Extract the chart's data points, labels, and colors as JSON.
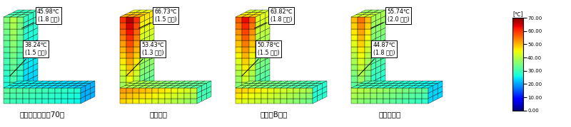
{
  "panels": [
    {
      "label": "【スラグリート70】",
      "top_text": "45.98℃\n(1.8 日目)",
      "bot_text": "38.24℃\n(1.5 日目)",
      "wall_max_temp": 45.98,
      "base_max_temp": 38.24,
      "wall_tmax": 40,
      "wall_tmin": 25,
      "base_tmax": 32,
      "base_tmin": 22
    },
    {
      "label": "【普通】",
      "top_text": "66.73℃\n(1.5 日目)",
      "bot_text": "53.43℃\n(1.3 日目)",
      "wall_max_temp": 66.73,
      "wall_tmax": 68,
      "wall_tmin": 30,
      "base_tmax": 52,
      "base_tmin": 28
    },
    {
      "label": "【高炉B種】",
      "top_text": "63.82℃\n(1.8 日目)",
      "bot_text": "50.78℃\n(1.5 日目)",
      "wall_max_temp": 63.82,
      "wall_tmax": 64,
      "wall_tmin": 28,
      "base_tmax": 48,
      "base_tmin": 26
    },
    {
      "label": "【中庸熱】",
      "top_text": "55.74℃\n(2.0 日目)",
      "bot_text": "44.87℃\n(1.8 日目)",
      "wall_max_temp": 55.74,
      "wall_tmax": 56,
      "wall_tmin": 26,
      "base_tmax": 40,
      "base_tmin": 22
    }
  ],
  "colorbar_ticks": [
    0.0,
    10.0,
    20.0,
    30.0,
    40.0,
    50.0,
    60.0,
    70.0
  ],
  "colorbar_label": "[℃]",
  "background_color": "#ffffff",
  "label_fontsize": 7.5,
  "ann_fontsize": 5.8
}
